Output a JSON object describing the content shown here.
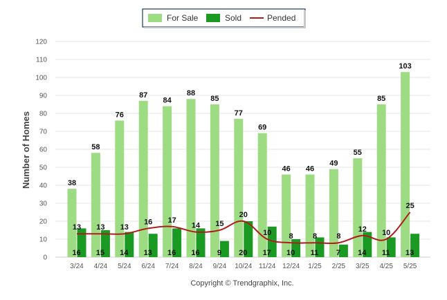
{
  "chart_data": {
    "type": "bar",
    "title": "",
    "xlabel": "",
    "ylabel": "Number of Homes",
    "ylim": [
      0,
      120
    ],
    "yticks": [
      0,
      10,
      20,
      30,
      40,
      50,
      60,
      70,
      80,
      90,
      100,
      110,
      120
    ],
    "grid": true,
    "legend_position": "top-center",
    "categories": [
      "3/24",
      "4/24",
      "5/24",
      "6/24",
      "7/24",
      "8/24",
      "9/24",
      "10/24",
      "11/24",
      "12/24",
      "1/25",
      "2/25",
      "3/25",
      "4/25",
      "5/25"
    ],
    "series": [
      {
        "name": "For Sale",
        "kind": "bar",
        "color": "#9edc83",
        "values": [
          38,
          58,
          76,
          87,
          84,
          88,
          85,
          77,
          69,
          46,
          46,
          49,
          55,
          85,
          103
        ]
      },
      {
        "name": "Sold",
        "kind": "bar",
        "color": "#1a9a22",
        "values": [
          16,
          15,
          14,
          13,
          16,
          16,
          9,
          20,
          17,
          10,
          11,
          7,
          14,
          11,
          13
        ]
      },
      {
        "name": "Pended",
        "kind": "line",
        "color": "#b01c1c",
        "values": [
          13,
          13,
          13,
          16,
          17,
          14,
          15,
          20,
          10,
          8,
          8,
          8,
          12,
          10,
          25
        ]
      }
    ]
  },
  "footer": {
    "copyright": "Copyright © Trendgraphix, Inc."
  }
}
